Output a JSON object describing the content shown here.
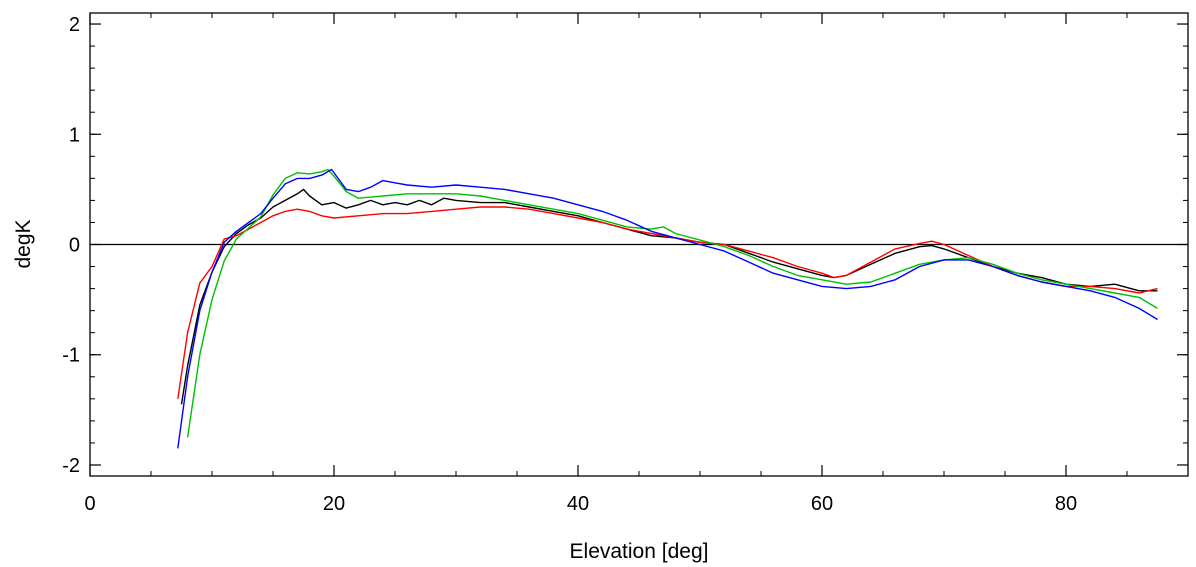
{
  "chart_data": {
    "type": "line",
    "title": "",
    "xlabel": "Elevation [deg]",
    "ylabel": "degK",
    "xlim": [
      0,
      90
    ],
    "ylim": [
      -2.1,
      2.1
    ],
    "x_ticks": [
      0,
      20,
      40,
      60,
      80
    ],
    "x_tick_labels": [
      "0",
      "20",
      "40",
      "60",
      "80"
    ],
    "y_ticks": [
      -2,
      -1,
      0,
      1,
      2
    ],
    "y_tick_labels": [
      "-2",
      "-1",
      "0",
      "1",
      "2"
    ],
    "grid": false,
    "legend": "none",
    "zero_line": 0,
    "series": [
      {
        "color": "#000000",
        "x": [
          7.5,
          8,
          9,
          10,
          11,
          12,
          13,
          14,
          15,
          16,
          17,
          17.5,
          18,
          19,
          20,
          21,
          22,
          23,
          24,
          25,
          26,
          27,
          28,
          29,
          30,
          32,
          34,
          36,
          38,
          40,
          42,
          44,
          46,
          48,
          50,
          52,
          54,
          56,
          58,
          60,
          61,
          62,
          64,
          66,
          68,
          69,
          70,
          72,
          74,
          76,
          78,
          80,
          82,
          84,
          86,
          87.5
        ],
        "values": [
          -1.45,
          -1.1,
          -0.55,
          -0.25,
          -0.02,
          0.1,
          0.18,
          0.24,
          0.34,
          0.4,
          0.46,
          0.5,
          0.44,
          0.36,
          0.38,
          0.33,
          0.36,
          0.4,
          0.36,
          0.38,
          0.36,
          0.4,
          0.36,
          0.42,
          0.4,
          0.38,
          0.38,
          0.34,
          0.3,
          0.26,
          0.2,
          0.14,
          0.08,
          0.06,
          0.02,
          0.0,
          -0.08,
          -0.16,
          -0.22,
          -0.28,
          -0.3,
          -0.28,
          -0.18,
          -0.08,
          -0.02,
          -0.01,
          -0.04,
          -0.12,
          -0.2,
          -0.26,
          -0.3,
          -0.36,
          -0.38,
          -0.36,
          -0.42,
          -0.42
        ]
      },
      {
        "color": "#ff0000",
        "x": [
          7.2,
          8,
          9,
          10,
          11,
          12,
          13,
          14,
          15,
          16,
          17,
          18,
          19,
          20,
          22,
          24,
          26,
          28,
          30,
          32,
          34,
          36,
          38,
          40,
          42,
          44,
          46,
          48,
          50,
          52,
          54,
          56,
          58,
          60,
          61,
          62,
          64,
          66,
          68,
          69,
          70,
          72,
          74,
          76,
          78,
          80,
          82,
          84,
          86,
          87.5
        ],
        "values": [
          -1.4,
          -0.8,
          -0.35,
          -0.2,
          0.05,
          0.08,
          0.14,
          0.2,
          0.26,
          0.3,
          0.32,
          0.3,
          0.26,
          0.24,
          0.26,
          0.28,
          0.28,
          0.3,
          0.32,
          0.34,
          0.34,
          0.32,
          0.28,
          0.24,
          0.2,
          0.14,
          0.1,
          0.06,
          0.02,
          0.0,
          -0.06,
          -0.12,
          -0.2,
          -0.26,
          -0.3,
          -0.28,
          -0.16,
          -0.04,
          0.01,
          0.03,
          0.0,
          -0.1,
          -0.2,
          -0.28,
          -0.34,
          -0.38,
          -0.38,
          -0.4,
          -0.44,
          -0.4
        ]
      },
      {
        "color": "#00c000",
        "x": [
          8,
          9,
          10,
          11,
          12,
          13,
          14,
          15,
          16,
          17,
          18,
          19,
          19.5,
          20,
          21,
          22,
          24,
          26,
          28,
          30,
          32,
          34,
          36,
          38,
          40,
          42,
          44,
          46,
          47,
          48,
          50,
          52,
          54,
          56,
          58,
          60,
          62,
          64,
          66,
          68,
          70,
          72,
          74,
          76,
          78,
          80,
          82,
          84,
          86,
          87.5
        ],
        "values": [
          -1.75,
          -1.0,
          -0.5,
          -0.15,
          0.05,
          0.15,
          0.25,
          0.45,
          0.6,
          0.65,
          0.64,
          0.66,
          0.68,
          0.62,
          0.48,
          0.42,
          0.44,
          0.46,
          0.46,
          0.46,
          0.44,
          0.4,
          0.36,
          0.32,
          0.28,
          0.22,
          0.16,
          0.14,
          0.16,
          0.1,
          0.04,
          -0.02,
          -0.1,
          -0.2,
          -0.28,
          -0.32,
          -0.36,
          -0.34,
          -0.26,
          -0.18,
          -0.14,
          -0.12,
          -0.18,
          -0.26,
          -0.32,
          -0.36,
          -0.4,
          -0.44,
          -0.48,
          -0.58
        ]
      },
      {
        "color": "#0000ff",
        "x": [
          7.2,
          8,
          9,
          10,
          11,
          12,
          13,
          14,
          15,
          16,
          17,
          18,
          19,
          19.8,
          21,
          22,
          23,
          24,
          25,
          26,
          28,
          30,
          32,
          34,
          36,
          38,
          40,
          42,
          44,
          46,
          48,
          50,
          52,
          54,
          56,
          58,
          60,
          62,
          64,
          66,
          68,
          70,
          72,
          74,
          76,
          78,
          80,
          82,
          84,
          86,
          87.5
        ],
        "values": [
          -1.85,
          -1.2,
          -0.6,
          -0.25,
          0.02,
          0.12,
          0.2,
          0.28,
          0.42,
          0.55,
          0.6,
          0.6,
          0.63,
          0.68,
          0.5,
          0.48,
          0.52,
          0.58,
          0.56,
          0.54,
          0.52,
          0.54,
          0.52,
          0.5,
          0.46,
          0.42,
          0.36,
          0.3,
          0.22,
          0.12,
          0.06,
          0.0,
          -0.06,
          -0.16,
          -0.26,
          -0.32,
          -0.38,
          -0.4,
          -0.38,
          -0.32,
          -0.2,
          -0.14,
          -0.14,
          -0.2,
          -0.28,
          -0.34,
          -0.38,
          -0.42,
          -0.48,
          -0.58,
          -0.68
        ]
      }
    ]
  }
}
